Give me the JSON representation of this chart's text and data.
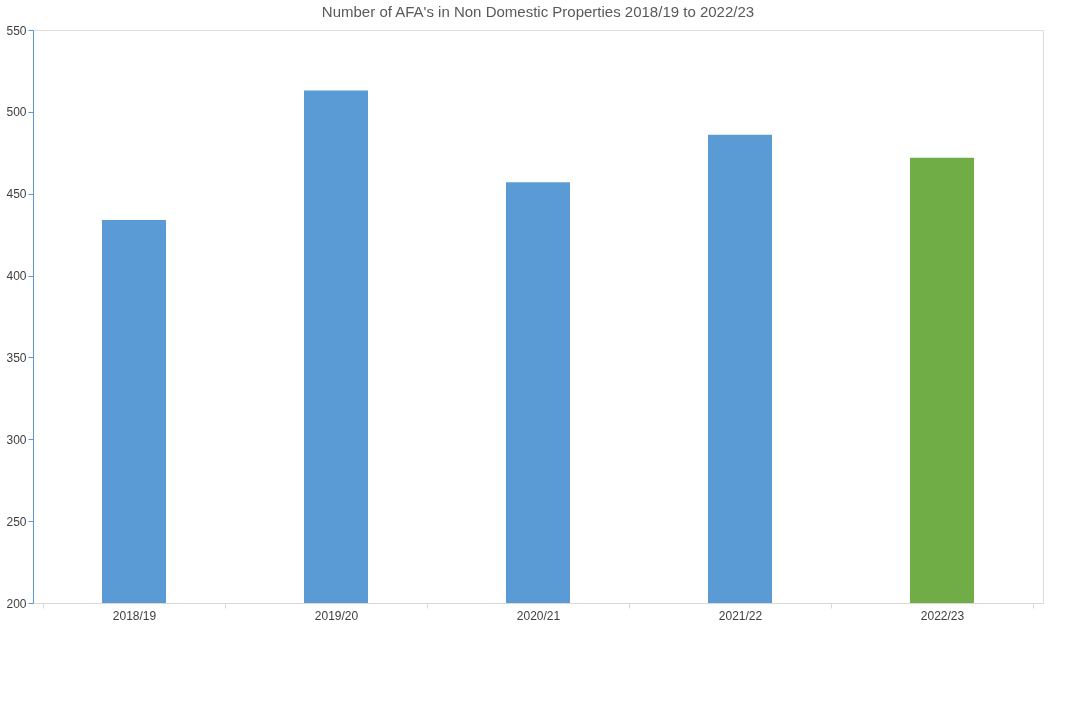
{
  "chart_data": {
    "type": "bar",
    "title": "Number of AFA's in Non Domestic Properties 2018/19 to 2022/23",
    "categories": [
      "2018/19",
      "2019/20",
      "2020/21",
      "2021/22",
      "2022/23"
    ],
    "values": [
      434,
      513,
      457,
      486,
      472
    ],
    "colors": [
      "#5b9bd5",
      "#5b9bd5",
      "#5b9bd5",
      "#5b9bd5",
      "#70ad47"
    ],
    "ylim": [
      200,
      550
    ],
    "yticks": [
      200,
      250,
      300,
      350,
      400,
      450,
      500,
      550
    ],
    "grid": false,
    "legend": false
  }
}
